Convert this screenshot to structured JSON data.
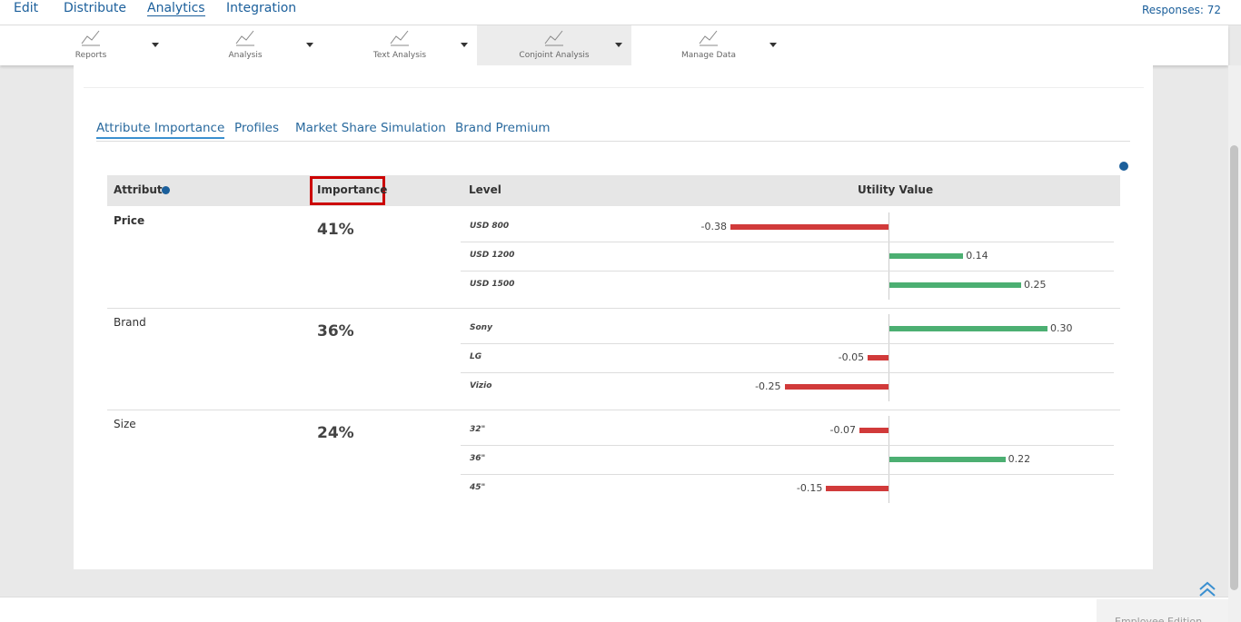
{
  "nav": {
    "tabs": [
      "Edit",
      "Distribute",
      "Analytics",
      "Integration"
    ],
    "active": 2,
    "responses": "Responses: 72"
  },
  "toolbar": {
    "items": [
      "Reports",
      "Analysis",
      "Text Analysis",
      "Conjoint Analysis",
      "Manage Data"
    ],
    "active": 3
  },
  "subtabs": {
    "items": [
      "Attribute Importance",
      "Profiles",
      "Market Share Simulation",
      "Brand Premium"
    ],
    "active": 0
  },
  "table": {
    "headers": {
      "attribute": "Attribute",
      "importance": "Importance",
      "level": "Level",
      "utility": "Utility Value"
    },
    "positive_color": "#4caf72",
    "negative_color": "#d13a3a",
    "attributes": [
      {
        "name": "Price",
        "importance": 41,
        "importance_label": "41%",
        "levels": [
          "USD 800",
          "USD 1200",
          "USD 1500"
        ],
        "utilities": [
          -0.38,
          0.14,
          0.25
        ],
        "utility_labels": [
          "-0.38",
          "0.14",
          "0.25"
        ]
      },
      {
        "name": "Brand",
        "importance": 36,
        "importance_label": "36%",
        "levels": [
          "Sony",
          "LG",
          "Vizio"
        ],
        "utilities": [
          0.3,
          -0.05,
          -0.25
        ],
        "utility_labels": [
          "0.30",
          "-0.05",
          "-0.25"
        ]
      },
      {
        "name": "Size",
        "importance": 24,
        "importance_label": "24%",
        "levels": [
          "32\"",
          "36\"",
          "45\""
        ],
        "utilities": [
          -0.07,
          0.22,
          -0.15
        ],
        "utility_labels": [
          "-0.07",
          "0.22",
          "-0.15"
        ]
      }
    ]
  },
  "footer": "Employee Edition"
}
